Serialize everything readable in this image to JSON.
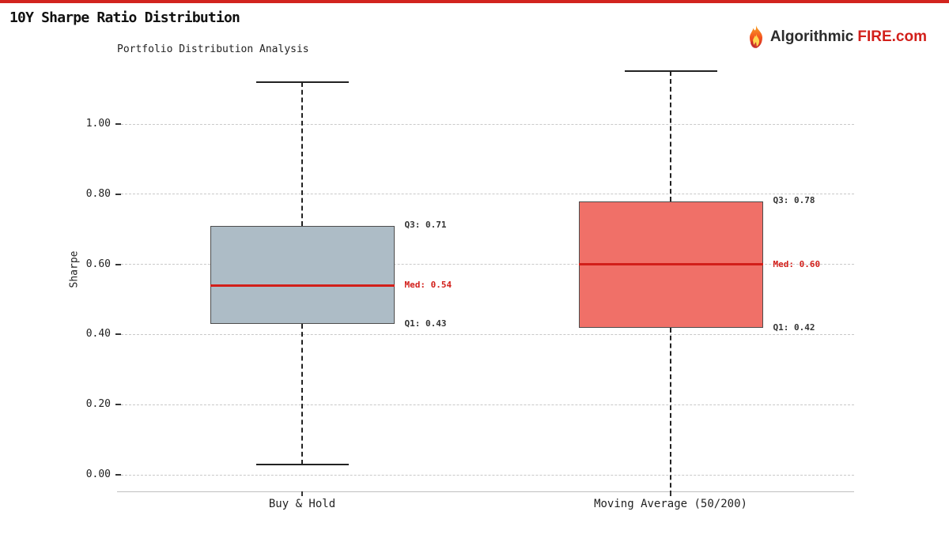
{
  "header": {
    "title": "10Y Sharpe Ratio Distribution",
    "logo": {
      "text_dark": "Algorithmic",
      "text_red": "FIRE.com"
    }
  },
  "brand_colors": {
    "accent_red": "#d2241e",
    "logo_red": "#d21f1a",
    "logo_dark": "#2b2b2b"
  },
  "chart_data": {
    "type": "boxplot",
    "title": "Portfolio Distribution Analysis",
    "ylabel": "Sharpe",
    "ylim": [
      -0.06,
      1.19
    ],
    "yticks": [
      "0.00",
      "0.20",
      "0.40",
      "0.60",
      "0.80",
      "1.00"
    ],
    "grid": true,
    "legend": false,
    "categories": [
      "Buy & Hold",
      "Moving Average (50/200)"
    ],
    "series": [
      {
        "category": "Buy & Hold",
        "q1": 0.43,
        "median": 0.54,
        "q3": 0.71,
        "whisker_low": 0.03,
        "whisker_high": 1.12,
        "box_color": "#adbcc6",
        "annotations": {
          "q3": "Q3: 0.71",
          "median": "Med: 0.54",
          "q1": "Q1: 0.43"
        }
      },
      {
        "category": "Moving Average (50/200)",
        "q1": 0.42,
        "median": 0.6,
        "q3": 0.78,
        "whisker_low": -0.06,
        "whisker_high": 1.15,
        "box_color": "#f07068",
        "annotations": {
          "q3": "Q3: 0.78",
          "median": "Med: 0.60",
          "q1": "Q1: 0.42"
        }
      }
    ],
    "colors": {
      "median_line": "#d21f1a",
      "annotation": "#333333",
      "median_annotation": "#d21f1a",
      "grid": "#c9c9c9",
      "axis": "#c0c0c0",
      "whisker": "#222222",
      "box_border": "#4d4d4d"
    }
  }
}
